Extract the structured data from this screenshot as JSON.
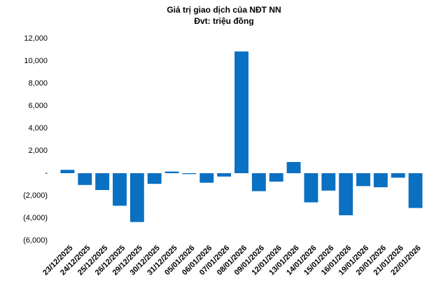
{
  "chart_data": {
    "type": "bar",
    "title": "Giá trị giao dịch của NĐT NN",
    "subtitle": "Đvt: triệu đồng",
    "categories": [
      "23/12/2025",
      "24/12/2025",
      "25/12/2025",
      "26/12/2025",
      "29/12/2025",
      "30/12/2025",
      "31/12/2025",
      "05/01/2026",
      "06/01/2026",
      "07/01/2026",
      "08/01/2026",
      "09/01/2026",
      "12/01/2026",
      "13/01/2026",
      "14/01/2026",
      "15/01/2026",
      "16/01/2026",
      "19/01/2026",
      "20/01/2026",
      "21/01/2026",
      "22/01/2026"
    ],
    "values": [
      300,
      -1050,
      -1500,
      -2900,
      -4350,
      -950,
      150,
      -80,
      -850,
      -300,
      10850,
      -1600,
      -750,
      1000,
      -2600,
      -1550,
      -3750,
      -1150,
      -1250,
      -400,
      -3100
    ],
    "color": "#0a70c2",
    "ylim": [
      -6000,
      12000
    ],
    "yticks": [
      {
        "value": -6000,
        "label": "(6,000)"
      },
      {
        "value": -4000,
        "label": "(4,000)"
      },
      {
        "value": -2000,
        "label": "(2,000)"
      },
      {
        "value": 0,
        "label": "-"
      },
      {
        "value": 2000,
        "label": "2,000"
      },
      {
        "value": 4000,
        "label": "4,000"
      },
      {
        "value": 6000,
        "label": "6,000"
      },
      {
        "value": 8000,
        "label": "8,000"
      },
      {
        "value": 10000,
        "label": "10,000"
      },
      {
        "value": 12000,
        "label": "12,000"
      }
    ],
    "grid": false
  }
}
